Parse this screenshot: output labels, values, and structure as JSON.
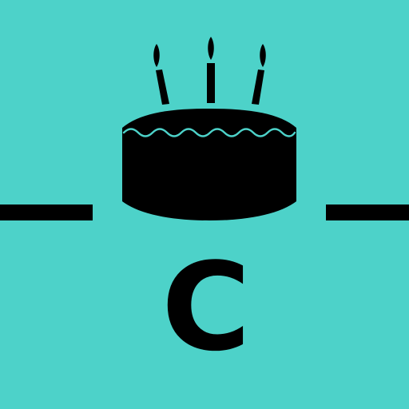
{
  "logo": {
    "letter": "C",
    "icon": "birthday-cake-icon",
    "candle_count": 3
  },
  "colors": {
    "background": "#4DD2C9",
    "foreground": "#000000",
    "accent": "#4DD2C9"
  }
}
